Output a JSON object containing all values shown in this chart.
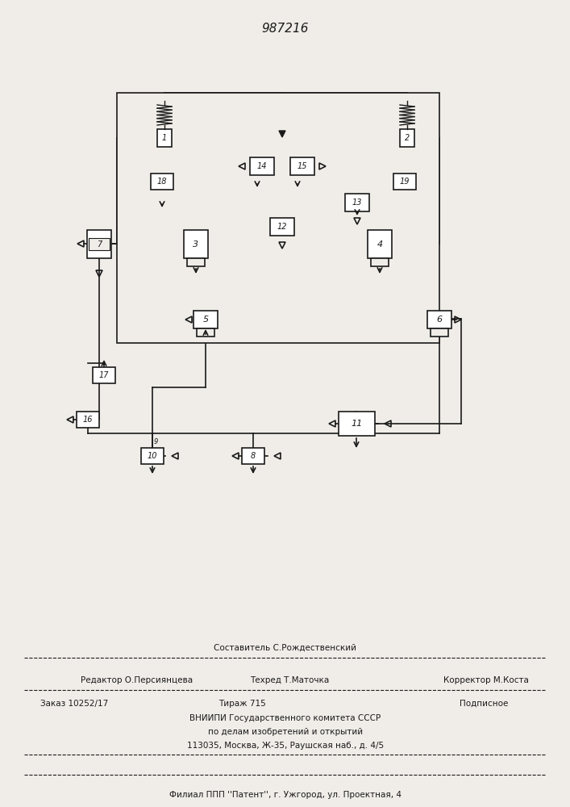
{
  "title": "987216",
  "background_color": "#f0ede8",
  "line_color": "#1a1a1a",
  "box_color": "#ffffff",
  "font_color": "#1a1a1a",
  "footer_lines": [
    [
      "Составитель С.Рождественский",
      "",
      ""
    ],
    [
      "Редактор О.Персиянцева",
      "Техред Т.Маточка",
      "Корректор М.Коста"
    ],
    [
      "Заказ 10252/17",
      "Тираж 715",
      "Подписное"
    ],
    [
      "ВНИИПИ Государственного комитета СССР",
      "",
      ""
    ],
    [
      "по делам изобретений и открытий",
      "",
      ""
    ],
    [
      "113035, Москва, Ж-35, Раушская наб., д. 4/5",
      "",
      ""
    ],
    [
      "Филиал ППП ''Патент'', г. Ужгород, ул. Проектная, 4",
      "",
      ""
    ]
  ]
}
